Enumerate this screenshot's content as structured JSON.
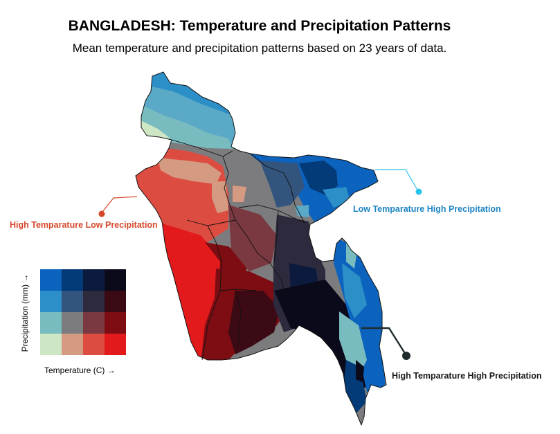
{
  "title": "BANGLADESH: Temperature and Precipitation Patterns",
  "subtitle": "Mean temperature and precipitation patterns based on 23 years of data.",
  "callouts": {
    "htlp": {
      "label": "High Temparature Low Precipitation",
      "color": "#d6482c"
    },
    "ltph": {
      "label": "Low Temparature High Precipitation",
      "color": "#1d84c4"
    },
    "htph": {
      "label": "High Temparature High Precipitation",
      "color": "#1a1a1a"
    }
  },
  "legend": {
    "x_label": "Temperature (C) →",
    "y_label": "Precipitation (mm) →",
    "grid": [
      [
        "#0b63be",
        "#033a78",
        "#0c1a3e",
        "#0a0a1a"
      ],
      [
        "#2d8fc7",
        "#33547c",
        "#2e2a3e",
        "#3b0a14"
      ],
      [
        "#78bcbf",
        "#7c7c7e",
        "#7a3840",
        "#7d0d12"
      ],
      [
        "#cde6c4",
        "#d59a82",
        "#dd4c40",
        "#e31a1c"
      ]
    ]
  }
}
